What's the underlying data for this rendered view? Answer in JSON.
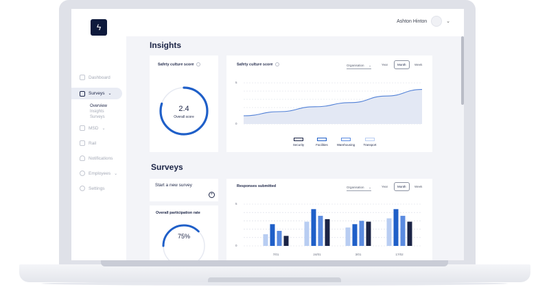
{
  "header": {
    "user_name": "Ashton Hinton",
    "logo_glyph": "ϟ"
  },
  "sidebar": {
    "items": [
      {
        "label": "Dashboard",
        "icon": "home-icon"
      },
      {
        "label": "Surveys",
        "icon": "clipboard-icon",
        "active": true
      },
      {
        "label": "MSD",
        "icon": "person-icon"
      },
      {
        "label": "Rail",
        "icon": "square-icon"
      },
      {
        "label": "Notifications",
        "icon": "bell-icon"
      },
      {
        "label": "Employees",
        "icon": "people-icon"
      },
      {
        "label": "Settings",
        "icon": "gear-icon"
      }
    ],
    "sub_items": [
      "Overview",
      "Insights",
      "Surveys"
    ]
  },
  "insights": {
    "heading": "Insights",
    "score_card": {
      "title": "Safety culture score",
      "value": "2.4",
      "caption": "Overall score",
      "fraction": 0.8
    },
    "line_card": {
      "title": "Safety culture score",
      "dropdown": "Organisation",
      "periods": [
        "Year",
        "Month",
        "Week"
      ],
      "active_period": "Month"
    }
  },
  "surveys": {
    "heading": "Surveys",
    "start_card": {
      "title": "Start a new survey"
    },
    "participation": {
      "title": "Overall participation rate",
      "value": "75%",
      "fraction": 0.75
    },
    "responses_card": {
      "title": "Responses submitted",
      "dropdown": "Organisation",
      "periods": [
        "Year",
        "Month",
        "Week"
      ],
      "active_period": "Month"
    }
  },
  "colors": {
    "navy": "#1b2446",
    "blue": "#1f5fc8",
    "mid": "#5b8be0",
    "light": "#b8cdf2"
  },
  "chart_data": [
    {
      "type": "area",
      "title": "Safety culture score",
      "yticks": [
        "5",
        "0"
      ],
      "ylim": [
        0,
        5
      ],
      "x": [
        0,
        1,
        2,
        3,
        4,
        5
      ],
      "series": [
        {
          "values": [
            1.0,
            1.5,
            2.1,
            2.6,
            3.4,
            4.2
          ]
        }
      ],
      "legend": [
        "Security",
        "Facilities",
        "Warehousing",
        "Transport"
      ],
      "grid": true
    },
    {
      "type": "bar",
      "title": "Responses submitted",
      "categories": [
        "7/01",
        "24/01",
        "3/01",
        "17/02"
      ],
      "yticks": [
        "5",
        "0"
      ],
      "ylim": [
        0,
        5
      ],
      "series": [
        {
          "values": [
            1.4,
            2.9,
            2.2,
            3.3
          ]
        },
        {
          "values": [
            2.6,
            4.4,
            2.6,
            4.4
          ]
        },
        {
          "values": [
            1.8,
            3.6,
            3.0,
            3.6
          ]
        },
        {
          "values": [
            1.2,
            3.2,
            2.9,
            2.9
          ]
        }
      ],
      "grid": true
    }
  ]
}
